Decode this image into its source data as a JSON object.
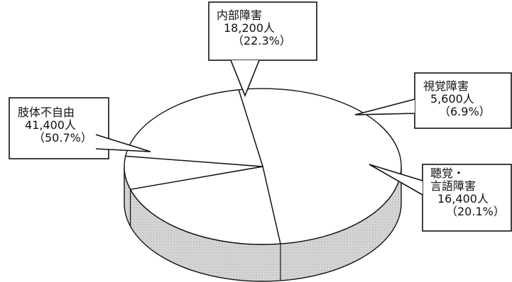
{
  "chart_data": {
    "type": "pie",
    "style": "3d-exploded",
    "unit": "人",
    "slices": [
      {
        "name_lines": [
          "肢体不自由"
        ],
        "value": 41400,
        "value_label": "41,400人",
        "percent": 50.7,
        "percent_label": "（50.7%）"
      },
      {
        "name_lines": [
          "内部障害"
        ],
        "value": 18200,
        "value_label": "18,200人",
        "percent": 22.3,
        "percent_label": "（22.3%）"
      },
      {
        "name_lines": [
          "視覚障害"
        ],
        "value": 5600,
        "value_label": "5,600人",
        "percent": 6.9,
        "percent_label": "（6.9%）"
      },
      {
        "name_lines": [
          "聴覚・",
          "言語障害"
        ],
        "value": 16400,
        "value_label": "16,400人",
        "percent": 20.1,
        "percent_label": "（20.1%）"
      }
    ],
    "colors": {
      "top_face": "#ffffff",
      "side_face": "#d9d9d9",
      "stroke": "#111111"
    }
  }
}
